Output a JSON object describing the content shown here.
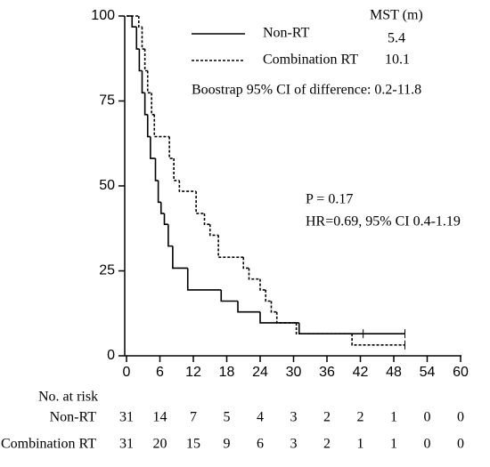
{
  "chart_data": {
    "type": "survival",
    "xlim": [
      0,
      60
    ],
    "xticks": [
      0,
      6,
      12,
      18,
      24,
      30,
      36,
      42,
      48,
      54,
      60
    ],
    "ylim": [
      0,
      100
    ],
    "yticks": [
      0,
      25,
      50,
      75,
      100
    ],
    "legend_header": "MST (m)",
    "series": [
      {
        "name": "Non-RT",
        "mst": "5.4",
        "color": "#000000",
        "dash": "solid",
        "x": [
          0,
          1,
          1.8,
          2.3,
          2.8,
          3.3,
          3.8,
          4.3,
          5.2,
          5.7,
          6.2,
          6.8,
          7.5,
          8.3,
          11,
          17,
          20,
          24,
          31,
          50
        ],
        "values": [
          100,
          96.8,
          90.3,
          83.9,
          77.4,
          71.0,
          64.5,
          58.1,
          51.6,
          45.2,
          41.9,
          38.7,
          32.3,
          25.8,
          19.4,
          16.1,
          12.9,
          9.7,
          6.5,
          6.5
        ],
        "censored_x": [
          42.5,
          50
        ],
        "at_risk": [
          31,
          14,
          7,
          5,
          4,
          3,
          2,
          2,
          1,
          0,
          0
        ]
      },
      {
        "name": "Combination RT",
        "mst": "10.1",
        "color": "#000000",
        "dash": "dotted",
        "x": [
          0,
          2.2,
          2.8,
          3.3,
          3.8,
          4.5,
          5,
          7.7,
          8.5,
          9.5,
          12.5,
          14,
          15,
          16.5,
          21,
          22,
          24,
          25,
          26,
          27,
          30.5,
          40.5,
          50
        ],
        "values": [
          100,
          96.8,
          90.3,
          83.9,
          77.4,
          71.0,
          64.5,
          58.1,
          51.6,
          48.4,
          41.9,
          38.7,
          35.5,
          29.0,
          25.8,
          22.6,
          19.4,
          16.1,
          12.9,
          9.7,
          6.5,
          3.2,
          3.2
        ],
        "censored_x": [
          50
        ],
        "at_risk": [
          31,
          20,
          15,
          9,
          6,
          3,
          2,
          1,
          1,
          0,
          0
        ]
      }
    ],
    "annotations": [
      "Boostrap 95% CI of difference: 0.2-11.8",
      "P = 0.17",
      "HR=0.69, 95% CI 0.4-1.19"
    ],
    "at_risk_title": "No. at risk"
  }
}
